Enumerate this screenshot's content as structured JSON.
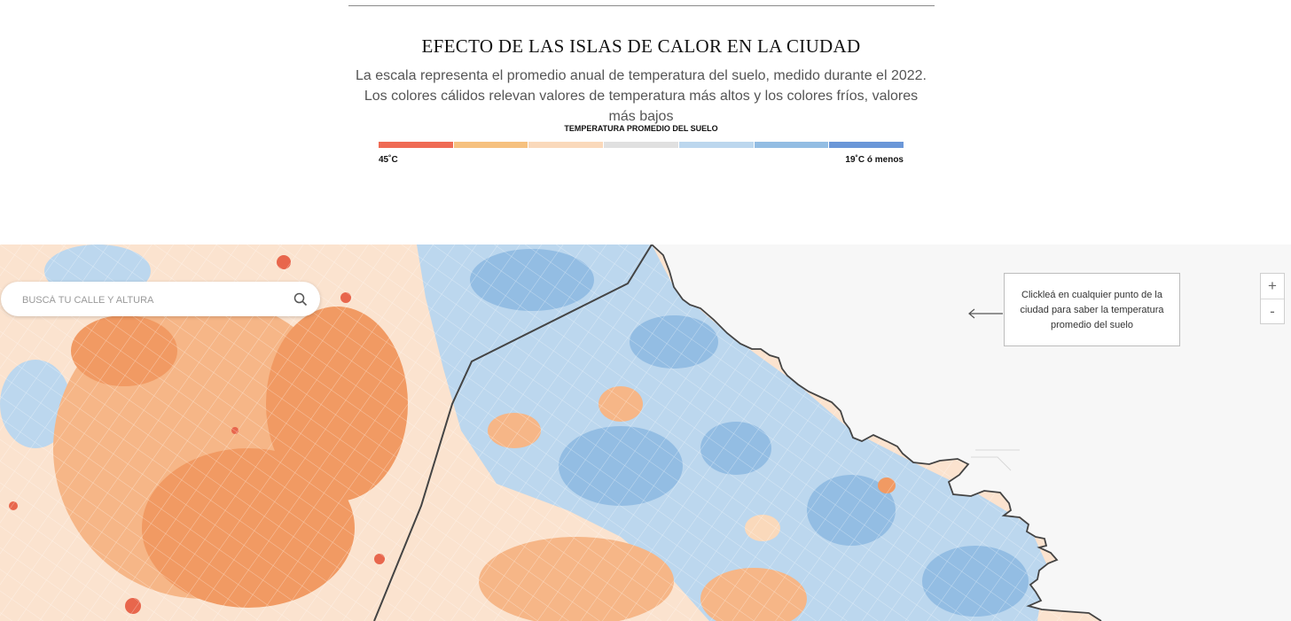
{
  "header": {
    "title": "EFECTO DE LAS ISLAS DE CALOR EN LA CIUDAD",
    "subtitle": "La escala representa el promedio anual de temperatura del suelo, medido durante el 2022. Los colores cálidos relevan valores de temperatura más altos y los colores fríos, valores más bajos"
  },
  "legend": {
    "title": "TEMPERATURA PROMEDIO DEL SUELO",
    "min_label": "45˚C",
    "max_label": "19˚C ó menos",
    "colors": [
      "#ef6b55",
      "#f6c17f",
      "#fad9bb",
      "#e0e0e0",
      "#bcd7ee",
      "#93bde3",
      "#6b97d8"
    ]
  },
  "search": {
    "placeholder": "BUSCÁ TU CALLE Y ALTURA",
    "icon": "search-icon"
  },
  "callout": {
    "text": "Clickleá en cualquier punto de la ciudad para saber la temperatura promedio del suelo"
  },
  "zoom": {
    "in_label": "+",
    "out_label": "-"
  },
  "map_colors": {
    "water": "#f7f7f7",
    "land_base": "#fbe3cf",
    "warm_dark": "#f19a63",
    "warm": "#f6b687",
    "hot": "#e8664c",
    "cool": "#bcd7ee",
    "cool_dark": "#93bde3",
    "boundary": "#444444",
    "street": "#ffffff"
  }
}
